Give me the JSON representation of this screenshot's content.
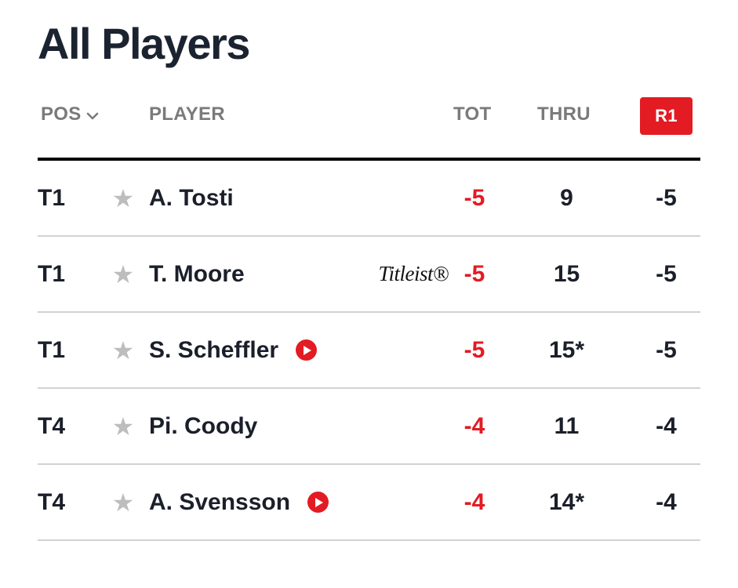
{
  "page": {
    "title": "All Players"
  },
  "header": {
    "pos": "POS",
    "player": "PLAYER",
    "tot": "TOT",
    "thru": "THRU",
    "r1": "R1"
  },
  "colors": {
    "accent": "#e31b23",
    "text": "#1b1f2a",
    "muted": "#7a7a7a",
    "star": "#bdbdbd"
  },
  "players": [
    {
      "pos": "T1",
      "name": "A. Tosti",
      "sponsor": "",
      "video": false,
      "tot": "-5",
      "thru": "9",
      "r1": "-5"
    },
    {
      "pos": "T1",
      "name": "T. Moore",
      "sponsor": "Titleist®",
      "video": false,
      "tot": "-5",
      "thru": "15",
      "r1": "-5"
    },
    {
      "pos": "T1",
      "name": "S. Scheffler",
      "sponsor": "",
      "video": true,
      "tot": "-5",
      "thru": "15*",
      "r1": "-5"
    },
    {
      "pos": "T4",
      "name": "Pi. Coody",
      "sponsor": "",
      "video": false,
      "tot": "-4",
      "thru": "11",
      "r1": "-4"
    },
    {
      "pos": "T4",
      "name": "A. Svensson",
      "sponsor": "",
      "video": true,
      "tot": "-4",
      "thru": "14*",
      "r1": "-4"
    }
  ]
}
